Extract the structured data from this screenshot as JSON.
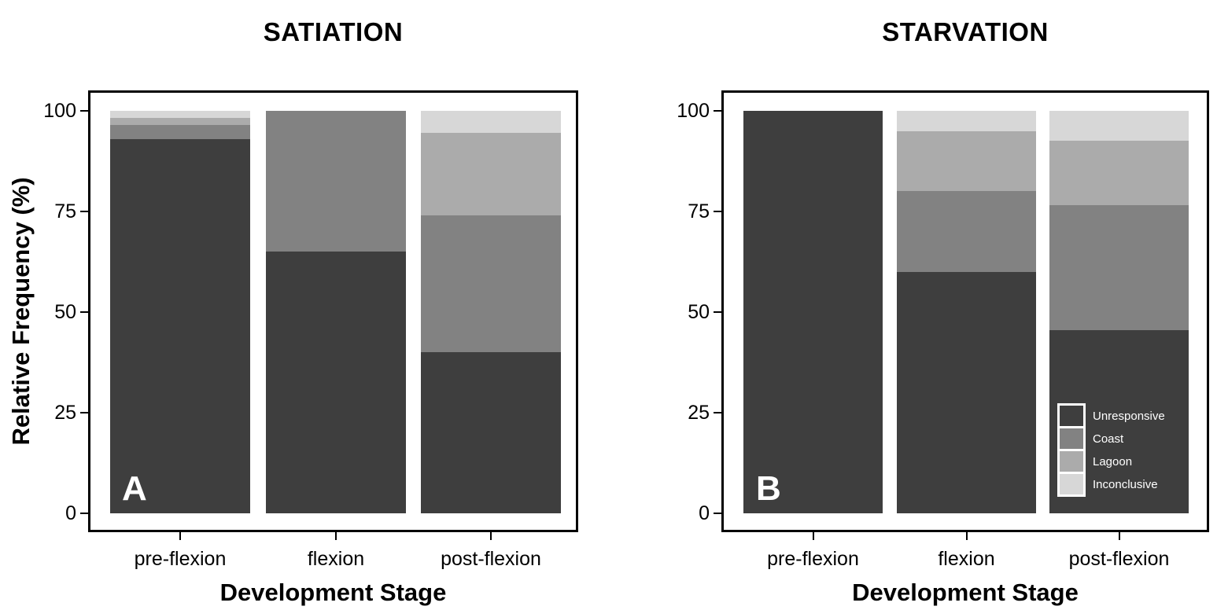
{
  "figure": {
    "background": "#ffffff",
    "axis_color": "#000000",
    "text_color": "#000000"
  },
  "colors": {
    "palette": [
      "#3e3e3e",
      "#828282",
      "#ababab",
      "#d7d7d7"
    ],
    "unresponsive": "#3e3e3e",
    "coast": "#828282",
    "lagoon": "#ababab",
    "inconclusive": "#d7d7d7",
    "panel_letter": "#ffffff",
    "legend_text": "#ffffff",
    "legend_key_border": "#ffffff"
  },
  "chart_data": [
    {
      "type": "bar",
      "stacked": true,
      "title": "SATIATION",
      "panel_label": "A",
      "xlabel": "Development Stage",
      "ylabel": "Relative Frequency (%)",
      "categories": [
        "pre-flexion",
        "flexion",
        "post-flexion"
      ],
      "yticks": [
        0,
        25,
        50,
        75,
        100
      ],
      "ylim": [
        0,
        100
      ],
      "grid": false,
      "series": [
        {
          "name": "Unresponsive",
          "values": [
            93,
            65,
            40
          ]
        },
        {
          "name": "Coast",
          "values": [
            3.5,
            35,
            34
          ]
        },
        {
          "name": "Lagoon",
          "values": [
            1.75,
            0,
            20.5
          ]
        },
        {
          "name": "Inconclusive",
          "values": [
            1.75,
            0,
            5.5
          ]
        }
      ]
    },
    {
      "type": "bar",
      "stacked": true,
      "title": "STARVATION",
      "panel_label": "B",
      "xlabel": "Development Stage",
      "categories": [
        "pre-flexion",
        "flexion",
        "post-flexion"
      ],
      "yticks": [
        0,
        25,
        50,
        75,
        100
      ],
      "ylim": [
        0,
        100
      ],
      "grid": false,
      "series": [
        {
          "name": "Unresponsive",
          "values": [
            100,
            60,
            45.5
          ]
        },
        {
          "name": "Coast",
          "values": [
            0,
            20,
            31
          ]
        },
        {
          "name": "Lagoon",
          "values": [
            0,
            15,
            16
          ]
        },
        {
          "name": "Inconclusive",
          "values": [
            0,
            5,
            7.5
          ]
        }
      ],
      "legend": {
        "position": "inside-bottom-right",
        "entries": [
          "Unresponsive",
          "Coast",
          "Lagoon",
          "Inconclusive"
        ]
      }
    }
  ]
}
